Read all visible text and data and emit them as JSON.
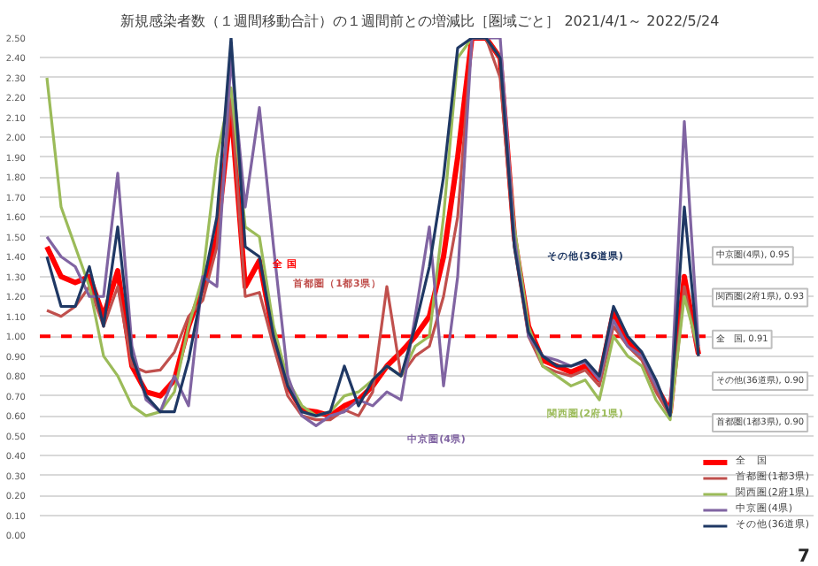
{
  "chart_data": {
    "type": "line",
    "title": "新規感染者数（１週間移動合計）の１週間前との増減比［圏域ごと］",
    "subtitle": "2021/4/1～ 2022/5/24",
    "categories": [
      null,
      null,
      null,
      null,
      null,
      null,
      null,
      null,
      null,
      null,
      null,
      null,
      null,
      null,
      null,
      null,
      null,
      null,
      null,
      null,
      null,
      null,
      null,
      null,
      null,
      null,
      null,
      null,
      null,
      null,
      null,
      null,
      null,
      null,
      null,
      null,
      null,
      null,
      null,
      null,
      null,
      null,
      null,
      null,
      null,
      null,
      null
    ],
    "series": [
      {
        "name": "全　国",
        "color": "#ff0000",
        "values": [
          1.45,
          1.3,
          1.27,
          1.3,
          1.1,
          1.33,
          0.85,
          0.72,
          0.7,
          0.78,
          1.05,
          1.25,
          1.5,
          2.15,
          1.25,
          1.38,
          1.0,
          0.75,
          0.63,
          0.62,
          0.6,
          0.65,
          0.68,
          0.75,
          0.85,
          0.92,
          1.0,
          1.1,
          1.4,
          1.9,
          2.5,
          2.5,
          2.4,
          1.5,
          1.05,
          0.88,
          0.85,
          0.82,
          0.85,
          0.78,
          1.12,
          0.98,
          0.9,
          0.75,
          0.62,
          1.3,
          0.91
        ]
      },
      {
        "name": "首都圏(1都3県)",
        "color": "#c0504d",
        "values": [
          1.13,
          1.1,
          1.15,
          1.25,
          1.05,
          1.25,
          0.85,
          0.82,
          0.83,
          0.92,
          1.1,
          1.18,
          1.45,
          2.2,
          1.2,
          1.22,
          0.95,
          0.7,
          0.6,
          0.58,
          0.58,
          0.63,
          0.6,
          0.72,
          1.25,
          0.8,
          0.9,
          0.95,
          1.2,
          1.6,
          2.5,
          2.5,
          2.3,
          1.45,
          1.0,
          0.85,
          0.82,
          0.8,
          0.83,
          0.75,
          1.05,
          0.95,
          0.88,
          0.72,
          0.6,
          1.25,
          0.9
        ]
      },
      {
        "name": "関西圏(2府1県)",
        "color": "#9bbb59",
        "values": [
          2.3,
          1.65,
          1.45,
          1.25,
          0.9,
          0.8,
          0.65,
          0.6,
          0.62,
          0.72,
          1.05,
          1.3,
          1.9,
          2.25,
          1.55,
          1.5,
          1.05,
          0.78,
          0.65,
          0.6,
          0.62,
          0.7,
          0.72,
          0.78,
          0.85,
          0.8,
          0.95,
          1.0,
          1.6,
          2.4,
          2.5,
          2.5,
          2.4,
          1.55,
          1.05,
          0.85,
          0.8,
          0.75,
          0.78,
          0.68,
          1.0,
          0.9,
          0.85,
          0.68,
          0.58,
          1.2,
          0.93
        ]
      },
      {
        "name": "中京圏(4県)",
        "color": "#8064a2",
        "values": [
          1.5,
          1.4,
          1.35,
          1.2,
          1.2,
          1.82,
          0.95,
          0.68,
          0.62,
          0.8,
          0.65,
          1.3,
          1.25,
          2.4,
          1.65,
          2.15,
          1.45,
          0.8,
          0.6,
          0.55,
          0.6,
          0.62,
          0.68,
          0.65,
          0.72,
          0.68,
          1.1,
          1.55,
          0.75,
          1.3,
          2.5,
          2.5,
          2.5,
          1.5,
          1.0,
          0.9,
          0.88,
          0.85,
          0.87,
          0.78,
          1.08,
          0.95,
          0.9,
          0.75,
          0.62,
          2.08,
          0.95
        ]
      },
      {
        "name": "その他(36道県)",
        "color": "#1f3864",
        "values": [
          1.4,
          1.15,
          1.15,
          1.35,
          1.05,
          1.55,
          0.9,
          0.7,
          0.62,
          0.62,
          0.88,
          1.25,
          1.6,
          2.5,
          1.45,
          1.4,
          1.0,
          0.75,
          0.62,
          0.6,
          0.62,
          0.85,
          0.65,
          0.78,
          0.85,
          0.8,
          1.05,
          1.35,
          1.8,
          2.45,
          2.5,
          2.5,
          2.4,
          1.45,
          1.02,
          0.9,
          0.85,
          0.85,
          0.88,
          0.8,
          1.15,
          1.0,
          0.92,
          0.78,
          0.6,
          1.65,
          0.9
        ]
      }
    ],
    "ylim": [
      0,
      2.5
    ],
    "yticks": [
      {
        "value": 0,
        "label": "0.00"
      },
      {
        "value": 0.1,
        "label": "0.10"
      },
      {
        "value": 0.2,
        "label": "0.20"
      },
      {
        "value": 0.3,
        "label": "0.30"
      },
      {
        "value": 0.4,
        "label": "0.40"
      },
      {
        "value": 0.5,
        "label": "0.50"
      },
      {
        "value": 0.6,
        "label": "0.60"
      },
      {
        "value": 0.7,
        "label": "0.70"
      },
      {
        "value": 0.8,
        "label": "0.80"
      },
      {
        "value": 0.9,
        "label": "0.90"
      },
      {
        "value": 1,
        "label": "1.00"
      },
      {
        "value": 1.1,
        "label": "1.10"
      },
      {
        "value": 1.2,
        "label": "1.20"
      },
      {
        "value": 1.3,
        "label": "1.30"
      },
      {
        "value": 1.4,
        "label": "1.40"
      },
      {
        "value": 1.5,
        "label": "1.50"
      },
      {
        "value": 1.6,
        "label": "1.60"
      },
      {
        "value": 1.7,
        "label": "1.70"
      },
      {
        "value": 1.8,
        "label": "1.80"
      },
      {
        "value": 1.9,
        "label": "1.90"
      },
      {
        "value": 2,
        "label": "2.00"
      },
      {
        "value": 2.1,
        "label": "2.10"
      },
      {
        "value": 2.2,
        "label": "2.20"
      },
      {
        "value": 2.3,
        "label": "2.30"
      },
      {
        "value": 2.4,
        "label": "2.40"
      },
      {
        "value": 2.5,
        "label": "2.50"
      }
    ],
    "ref_lines": [
      {
        "axis": "y",
        "value": 1.0,
        "color": "#ff0000",
        "line_style": "dashed"
      }
    ],
    "annotations": [
      "全 国",
      "首都圏（1都3県）",
      "関西圏(2府1県)",
      "中京圏(4県)",
      "その他(36道県)",
      "全　国, 0.91",
      "首都圏(1都3県), 0.90",
      "関西圏(2府1県), 0.93",
      "中京圏(4県), 0.95",
      "その他(36道県), 0.90",
      "7"
    ],
    "grid": "y",
    "legend": "bottom right",
    "tick_labels": "y",
    "marker": "none",
    "line_style": "solid"
  }
}
